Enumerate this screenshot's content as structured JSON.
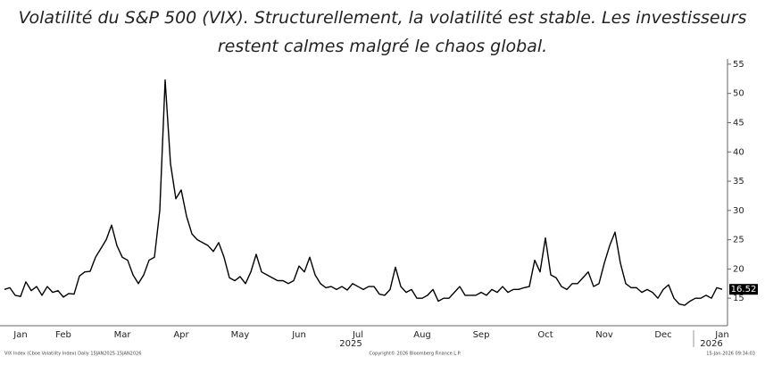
{
  "chart_data": {
    "type": "line",
    "title": "Volatilité du S&P 500 (VIX). Structurellement, la volatilité est stable. Les investisseurs restent calmes malgré le chaos global.",
    "categories": [
      null,
      null,
      null,
      "Jan",
      null,
      null,
      null,
      null,
      null,
      null,
      null,
      "Feb",
      null,
      null,
      null,
      null,
      null,
      null,
      null,
      null,
      null,
      null,
      "Mar",
      null,
      null,
      null,
      null,
      null,
      null,
      null,
      null,
      null,
      null,
      "Apr",
      null,
      null,
      null,
      null,
      null,
      null,
      null,
      null,
      null,
      null,
      "May",
      null,
      null,
      null,
      null,
      null,
      null,
      null,
      null,
      null,
      null,
      "Jun",
      null,
      null,
      null,
      null,
      null,
      null,
      null,
      null,
      null,
      null,
      "Jul",
      null,
      null,
      null,
      null,
      null,
      null,
      null,
      null,
      null,
      null,
      null,
      "Aug",
      null,
      null,
      null,
      null,
      null,
      null,
      null,
      null,
      null,
      null,
      "Sep",
      null,
      null,
      null,
      null,
      null,
      null,
      null,
      null,
      null,
      null,
      null,
      "Oct",
      null,
      null,
      null,
      null,
      null,
      null,
      null,
      null,
      null,
      null,
      "Nov",
      null,
      null,
      null,
      null,
      null,
      null,
      null,
      null,
      null,
      null,
      "Dec",
      null,
      null,
      null,
      null,
      null,
      null,
      null,
      null,
      null,
      null,
      "Jan"
    ],
    "years": [
      "2025",
      "2026"
    ],
    "series": [
      {
        "name": "VIX Index",
        "color": "#000000",
        "values": [
          16.5,
          16.8,
          15.5,
          15.3,
          17.8,
          16.3,
          17,
          15.5,
          17,
          16,
          16.3,
          15.2,
          15.8,
          15.7,
          18.8,
          19.5,
          19.6,
          22,
          23.5,
          25,
          27.5,
          24,
          22,
          21.5,
          19,
          17.5,
          19,
          21.5,
          22,
          30,
          52.3,
          38,
          32,
          33.5,
          29,
          26,
          25,
          24.5,
          24,
          23,
          24.5,
          22,
          18.5,
          18,
          18.7,
          17.5,
          19.5,
          22.5,
          19.5,
          19,
          18.5,
          18,
          18,
          17.5,
          18,
          20.5,
          19.5,
          22,
          19,
          17.5,
          16.8,
          17,
          16.5,
          17,
          16.4,
          17.5,
          17,
          16.5,
          17,
          17,
          15.7,
          15.5,
          16.5,
          20.3,
          17,
          16,
          16.5,
          15,
          15,
          15.5,
          16.5,
          14.5,
          15,
          15,
          16,
          17,
          15.5,
          15.5,
          15.5,
          16,
          15.5,
          16.5,
          16,
          17,
          16,
          16.5,
          16.5,
          16.8,
          17,
          21.5,
          19.5,
          25.3,
          19,
          18.5,
          17,
          16.5,
          17.5,
          17.5,
          18.5,
          19.5,
          17,
          17.5,
          21,
          24,
          26.3,
          21,
          17.5,
          16.8,
          16.8,
          16,
          16.5,
          16,
          15,
          16.5,
          17.3,
          15,
          14,
          13.8,
          14.5,
          15,
          15,
          15.5,
          15,
          16.8,
          16.52
        ]
      }
    ],
    "ylim": [
      10.3,
      55.9
    ],
    "yticks": [
      15,
      20,
      25,
      30,
      35,
      40,
      45,
      50,
      55
    ],
    "footer": {
      "left": "VIX Index (Cboe Volatility Index) Daily 15JAN2025-15JAN2026",
      "center": "Copyright© 2026 Bloomberg Finance L.P.",
      "right": "15-Jan-2026 09:34:03"
    }
  }
}
